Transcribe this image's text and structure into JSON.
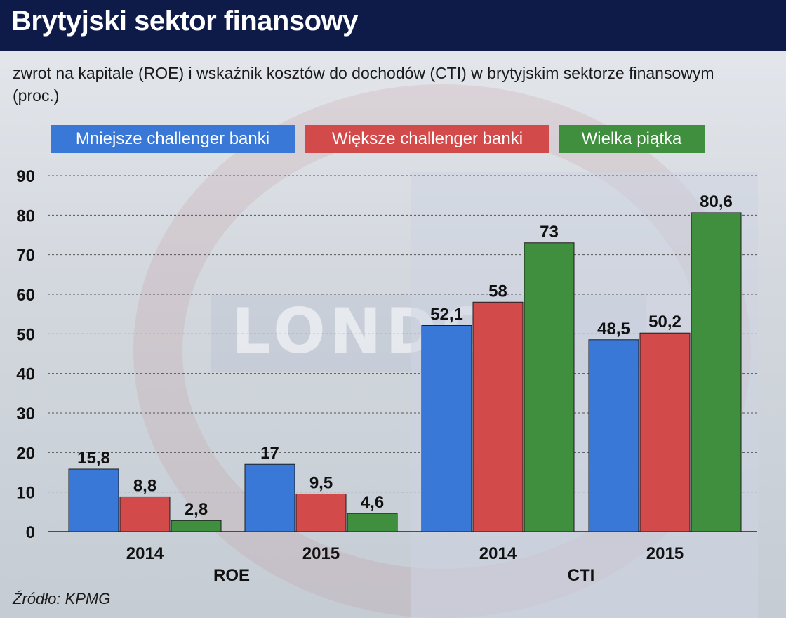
{
  "title": "Brytyjski sektor finansowy",
  "subtitle": "zwrot na kapitale (ROE) i wskaźnik kosztów do dochodów (CTI) w brytyjskim sektorze finansowym (proc.)",
  "background_word": "LONDO",
  "source": "Źródło: KPMG",
  "legend": [
    {
      "label": "Mniejsze challenger banki",
      "color": "#3a78d8"
    },
    {
      "label": "Większe challenger banki",
      "color": "#d24a4a"
    },
    {
      "label": "Wielka piątka",
      "color": "#3f8f3f"
    }
  ],
  "chart_data": {
    "type": "bar",
    "title": "Brytyjski sektor finansowy",
    "groups": [
      "ROE",
      "CTI"
    ],
    "categories": [
      "2014",
      "2015",
      "2014",
      "2015"
    ],
    "category_group": [
      "ROE",
      "ROE",
      "CTI",
      "CTI"
    ],
    "series": [
      {
        "name": "Mniejsze challenger banki",
        "values": [
          15.8,
          17,
          52.1,
          48.5
        ],
        "labels": [
          "15,8",
          "17",
          "52,1",
          "48,5"
        ],
        "color": "#3a78d8"
      },
      {
        "name": "Większe challenger banki",
        "values": [
          8.8,
          9.5,
          58,
          50.2
        ],
        "labels": [
          "8,8",
          "9,5",
          "58",
          "50,2"
        ],
        "color": "#d24a4a"
      },
      {
        "name": "Wielka piątka",
        "values": [
          2.8,
          4.6,
          73,
          80.6
        ],
        "labels": [
          "2,8",
          "4,6",
          "73",
          "80,6"
        ],
        "color": "#3f8f3f"
      }
    ],
    "ylim": [
      0,
      90
    ],
    "yticks": [
      0,
      10,
      20,
      30,
      40,
      50,
      60,
      70,
      80,
      90
    ],
    "grid": true,
    "legend_position": "top"
  }
}
